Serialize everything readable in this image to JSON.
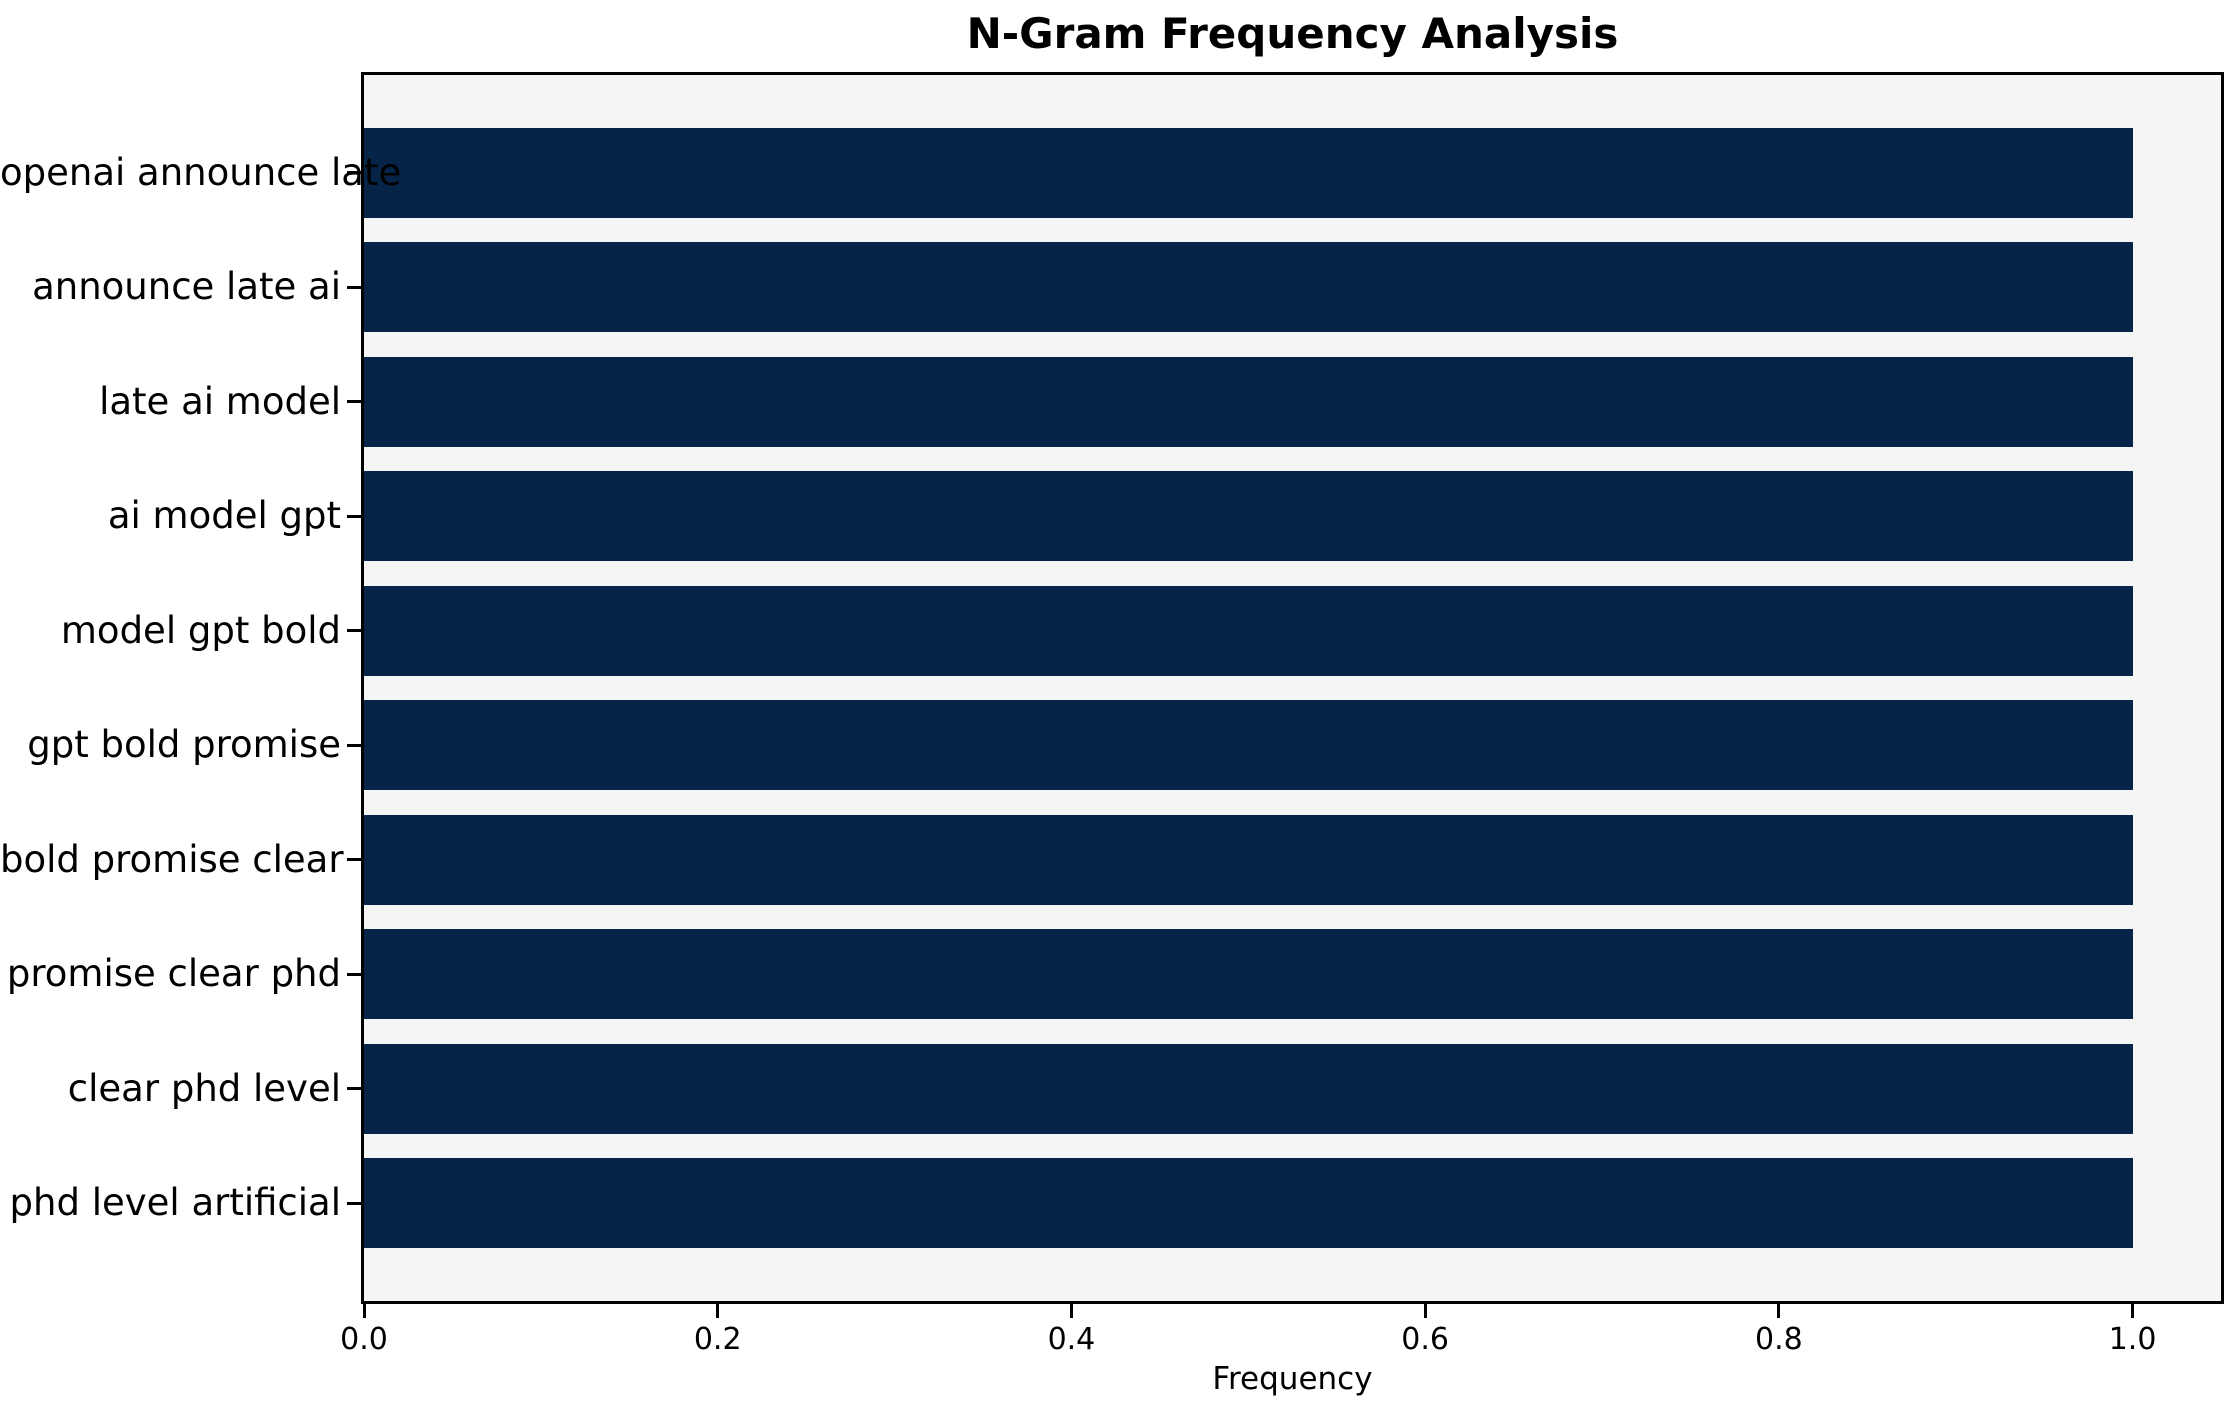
{
  "chart_data": {
    "type": "bar",
    "orientation": "horizontal",
    "title": "N-Gram Frequency Analysis",
    "xlabel": "Frequency",
    "ylabel": "",
    "categories": [
      "openai announce late",
      "announce late ai",
      "late ai model",
      "ai model gpt",
      "model gpt bold",
      "gpt bold promise",
      "bold promise clear",
      "promise clear phd",
      "clear phd level",
      "phd level artificial"
    ],
    "values": [
      1.0,
      1.0,
      1.0,
      1.0,
      1.0,
      1.0,
      1.0,
      1.0,
      1.0,
      1.0
    ],
    "xlim": [
      0,
      1.05
    ],
    "x_ticks": [
      0.0,
      0.2,
      0.4,
      0.6,
      0.8,
      1.0
    ],
    "x_tick_labels": [
      "0.0",
      "0.2",
      "0.4",
      "0.6",
      "0.8",
      "1.0"
    ],
    "grid": false,
    "legend": false,
    "colors": {
      "bar": "#062448",
      "plot_background": "#f5f5f5",
      "figure_background": "#ffffff",
      "spine": "#000000",
      "text": "#000000"
    }
  }
}
